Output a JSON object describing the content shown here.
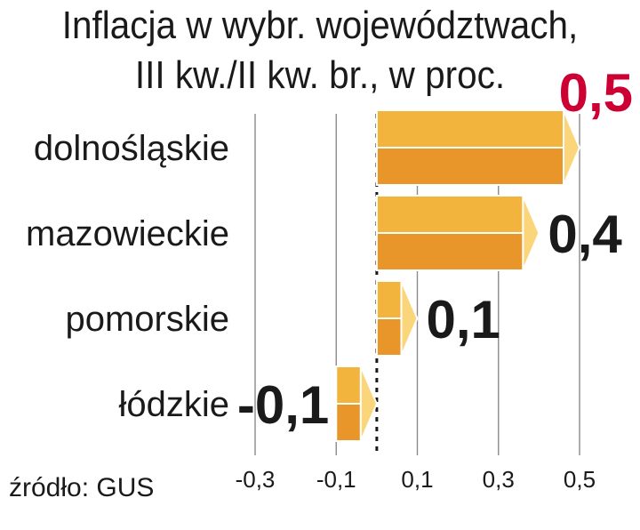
{
  "title": "Inflacja w wybr. województwach,",
  "subtitle": "III kw./II kw. br., w proc.",
  "source": "źródło: GUS",
  "chart_data": {
    "type": "bar",
    "orientation": "horizontal",
    "categories": [
      "dolnośląskie",
      "mazowieckie",
      "pomorskie",
      "łódzkie"
    ],
    "values": [
      0.5,
      0.4,
      0.1,
      -0.1
    ],
    "value_labels": [
      "0,5",
      "0,4",
      "0,1",
      "-0,1"
    ],
    "xlim": [
      -0.3,
      0.5
    ],
    "xticks": [
      -0.3,
      -0.1,
      0.1,
      0.3,
      0.5
    ],
    "xtick_labels": [
      "-0,3",
      "-0,1",
      "0,1",
      "0,3",
      "0,5"
    ],
    "grid": true,
    "colors": {
      "bar_top": "#f2b43c",
      "bar_bottom": "#e8962a",
      "bar_cap": "#fbd57a",
      "highlight_label": "#cc0033",
      "label": "#1a1a1a",
      "grid": "#8a8a8a"
    },
    "highlight_index": 0
  }
}
